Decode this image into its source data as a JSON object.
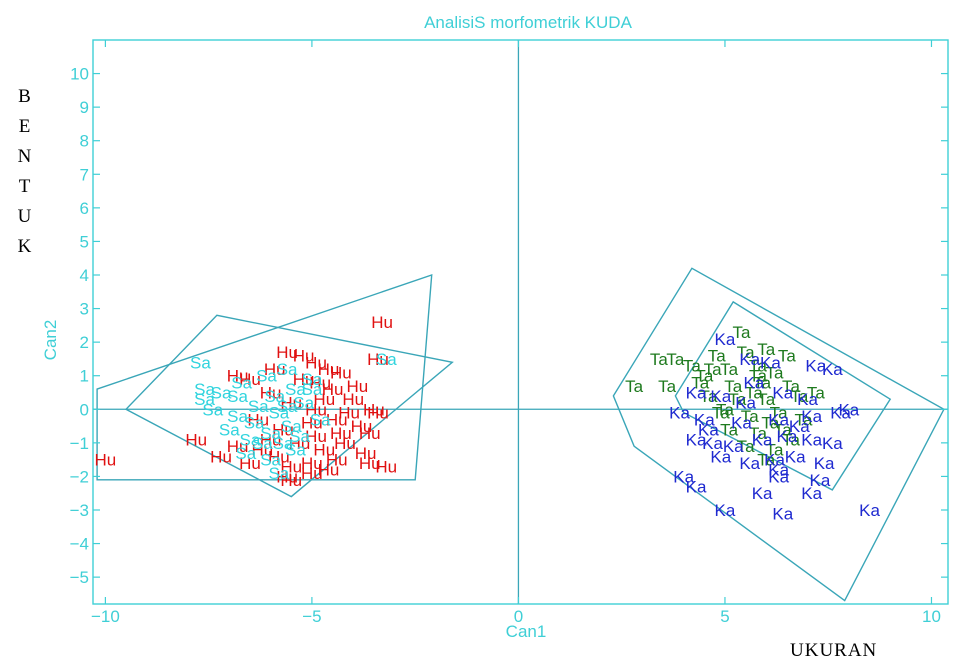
{
  "chart_data": {
    "type": "scatter",
    "title": "AnalisiS morfometrik KUDA",
    "xlabel": "Can1",
    "ylabel": "Can2",
    "side_ylabel": "BENTUK",
    "side_xlabel": "UKURAN",
    "xlim": [
      -10.3,
      10.4
    ],
    "ylim": [
      -5.8,
      11.0
    ],
    "xticks": [
      -10,
      -5,
      0,
      5,
      10
    ],
    "yticks": [
      -5,
      -4,
      -3,
      -2,
      -1,
      0,
      1,
      2,
      3,
      4,
      5,
      6,
      7,
      8,
      9,
      10
    ],
    "x_tick_labels": [
      "−10",
      "−5",
      "0",
      "5",
      "10"
    ],
    "y_tick_labels": [
      "−5",
      "−4",
      "−3",
      "−2",
      "−1",
      "0",
      "1",
      "2",
      "3",
      "4",
      "5",
      "6",
      "7",
      "8",
      "9",
      "10"
    ],
    "colors": {
      "axis": "#3fcfd6",
      "ref_line": "#3aa6b8",
      "hull": "#3aa6b8"
    },
    "series": [
      {
        "name": "Hu",
        "color": "#e01010",
        "points": [
          [
            -3.3,
            2.6
          ],
          [
            -3.4,
            1.5
          ],
          [
            -10.0,
            -1.5
          ],
          [
            -5.6,
            1.7
          ],
          [
            -5.2,
            1.6
          ],
          [
            -4.9,
            1.4
          ],
          [
            -4.3,
            1.1
          ],
          [
            -6.5,
            0.9
          ],
          [
            -5.9,
            1.2
          ],
          [
            -4.8,
            0.8
          ],
          [
            -4.5,
            0.6
          ],
          [
            -6.0,
            0.5
          ],
          [
            -5.5,
            0.2
          ],
          [
            -4.9,
            0.0
          ],
          [
            -4.1,
            -0.1
          ],
          [
            -3.5,
            0.0
          ],
          [
            -6.3,
            -0.3
          ],
          [
            -5.7,
            -0.6
          ],
          [
            -5.0,
            -0.4
          ],
          [
            -4.4,
            -0.3
          ],
          [
            -3.8,
            -0.5
          ],
          [
            -3.6,
            -0.7
          ],
          [
            -7.8,
            -0.9
          ],
          [
            -6.8,
            -1.1
          ],
          [
            -6.0,
            -0.9
          ],
          [
            -5.3,
            -1.0
          ],
          [
            -4.7,
            -1.2
          ],
          [
            -4.2,
            -1.0
          ],
          [
            -3.7,
            -1.3
          ],
          [
            -7.2,
            -1.4
          ],
          [
            -6.5,
            -1.6
          ],
          [
            -5.8,
            -1.4
          ],
          [
            -5.0,
            -1.6
          ],
          [
            -4.4,
            -1.5
          ],
          [
            -3.6,
            -1.6
          ],
          [
            -3.2,
            -1.7
          ],
          [
            -5.6,
            -2.0
          ],
          [
            -5.0,
            -1.9
          ],
          [
            -4.6,
            -1.8
          ],
          [
            -5.5,
            -2.1
          ],
          [
            -6.8,
            1.0
          ],
          [
            -5.2,
            0.9
          ],
          [
            -4.6,
            1.2
          ],
          [
            -3.9,
            0.7
          ],
          [
            -4.7,
            0.3
          ],
          [
            -4.0,
            0.3
          ],
          [
            -3.4,
            -0.1
          ],
          [
            -4.3,
            -0.7
          ],
          [
            -4.9,
            -0.8
          ],
          [
            -6.2,
            -1.2
          ],
          [
            -5.5,
            -1.7
          ]
        ]
      },
      {
        "name": "Sa",
        "color": "#31d4de",
        "points": [
          [
            -7.7,
            1.4
          ],
          [
            -7.6,
            0.6
          ],
          [
            -7.6,
            0.3
          ],
          [
            -3.2,
            1.5
          ],
          [
            -7.2,
            0.5
          ],
          [
            -6.8,
            0.4
          ],
          [
            -6.1,
            1.0
          ],
          [
            -5.6,
            1.2
          ],
          [
            -5.0,
            0.9
          ],
          [
            -7.4,
            0.0
          ],
          [
            -6.8,
            -0.2
          ],
          [
            -6.3,
            0.1
          ],
          [
            -5.8,
            -0.1
          ],
          [
            -5.2,
            0.2
          ],
          [
            -7.0,
            -0.6
          ],
          [
            -6.5,
            -0.9
          ],
          [
            -6.0,
            -0.7
          ],
          [
            -5.5,
            -0.5
          ],
          [
            -6.6,
            -1.3
          ],
          [
            -6.0,
            -1.5
          ],
          [
            -5.4,
            -1.2
          ],
          [
            -5.8,
            -1.9
          ],
          [
            -5.4,
            0.6
          ],
          [
            -5.9,
            0.4
          ],
          [
            -6.4,
            -0.4
          ],
          [
            -5.7,
            -1.0
          ],
          [
            -4.8,
            -0.3
          ],
          [
            -5.0,
            0.6
          ],
          [
            -6.7,
            0.8
          ],
          [
            -6.2,
            -1.0
          ],
          [
            -5.3,
            -0.8
          ],
          [
            -5.6,
            0.1
          ]
        ]
      },
      {
        "name": "Ta",
        "color": "#1e7a1e",
        "points": [
          [
            5.4,
            2.3
          ],
          [
            4.8,
            1.6
          ],
          [
            5.5,
            1.7
          ],
          [
            6.0,
            1.8
          ],
          [
            6.5,
            1.6
          ],
          [
            3.4,
            1.5
          ],
          [
            3.8,
            1.5
          ],
          [
            4.2,
            1.3
          ],
          [
            4.7,
            1.2
          ],
          [
            5.1,
            1.2
          ],
          [
            5.8,
            1.3
          ],
          [
            6.2,
            1.1
          ],
          [
            2.8,
            0.7
          ],
          [
            3.6,
            0.7
          ],
          [
            4.4,
            0.8
          ],
          [
            5.2,
            0.7
          ],
          [
            5.9,
            0.8
          ],
          [
            6.6,
            0.7
          ],
          [
            4.6,
            0.4
          ],
          [
            5.3,
            0.3
          ],
          [
            6.0,
            0.3
          ],
          [
            6.8,
            0.4
          ],
          [
            7.2,
            0.5
          ],
          [
            4.9,
            -0.1
          ],
          [
            5.6,
            -0.2
          ],
          [
            6.3,
            -0.1
          ],
          [
            6.9,
            -0.3
          ],
          [
            5.1,
            -0.6
          ],
          [
            5.8,
            -0.7
          ],
          [
            6.4,
            -0.6
          ],
          [
            5.5,
            -1.1
          ],
          [
            6.2,
            -1.2
          ],
          [
            6.0,
            -1.5
          ],
          [
            5.8,
            1.0
          ],
          [
            5.0,
            0.0
          ],
          [
            6.6,
            -0.9
          ],
          [
            4.5,
            1.0
          ],
          [
            5.7,
            0.5
          ],
          [
            6.1,
            -0.4
          ]
        ]
      },
      {
        "name": "Ka",
        "color": "#1f2ad0",
        "points": [
          [
            5.0,
            2.1
          ],
          [
            5.6,
            1.5
          ],
          [
            6.1,
            1.4
          ],
          [
            7.2,
            1.3
          ],
          [
            7.6,
            1.2
          ],
          [
            4.3,
            0.5
          ],
          [
            4.9,
            0.4
          ],
          [
            5.5,
            0.2
          ],
          [
            6.4,
            0.5
          ],
          [
            7.0,
            0.3
          ],
          [
            3.9,
            -0.1
          ],
          [
            4.5,
            -0.3
          ],
          [
            5.4,
            -0.4
          ],
          [
            6.3,
            -0.3
          ],
          [
            7.1,
            -0.2
          ],
          [
            7.8,
            -0.1
          ],
          [
            8.0,
            0.0
          ],
          [
            4.3,
            -0.9
          ],
          [
            4.7,
            -1.0
          ],
          [
            5.2,
            -1.1
          ],
          [
            5.9,
            -0.9
          ],
          [
            6.5,
            -0.8
          ],
          [
            7.1,
            -0.9
          ],
          [
            7.6,
            -1.0
          ],
          [
            4.9,
            -1.4
          ],
          [
            5.6,
            -1.6
          ],
          [
            6.2,
            -1.5
          ],
          [
            6.7,
            -1.4
          ],
          [
            7.4,
            -1.6
          ],
          [
            6.3,
            -1.8
          ],
          [
            4.0,
            -2.0
          ],
          [
            4.3,
            -2.3
          ],
          [
            6.3,
            -2.0
          ],
          [
            7.3,
            -2.1
          ],
          [
            5.9,
            -2.5
          ],
          [
            7.1,
            -2.5
          ],
          [
            5.0,
            -3.0
          ],
          [
            6.4,
            -3.1
          ],
          [
            8.5,
            -3.0
          ],
          [
            4.6,
            -0.6
          ],
          [
            5.7,
            0.8
          ],
          [
            6.8,
            -0.5
          ]
        ]
      }
    ],
    "hulls": [
      [
        [
          -10.2,
          0.6
        ],
        [
          -2.1,
          4.0
        ],
        [
          -2.5,
          -2.1
        ],
        [
          -10.2,
          -2.1
        ]
      ],
      [
        [
          -9.5,
          0.0
        ],
        [
          -7.3,
          2.8
        ],
        [
          -1.6,
          1.4
        ],
        [
          -5.5,
          -2.6
        ]
      ],
      [
        [
          2.3,
          0.4
        ],
        [
          4.2,
          4.2
        ],
        [
          10.3,
          0.0
        ],
        [
          7.9,
          -5.7
        ],
        [
          2.8,
          -1.1
        ]
      ],
      [
        [
          3.8,
          0.4
        ],
        [
          5.2,
          3.2
        ],
        [
          9.0,
          0.3
        ],
        [
          7.6,
          -2.4
        ],
        [
          4.0,
          -0.1
        ]
      ]
    ]
  }
}
